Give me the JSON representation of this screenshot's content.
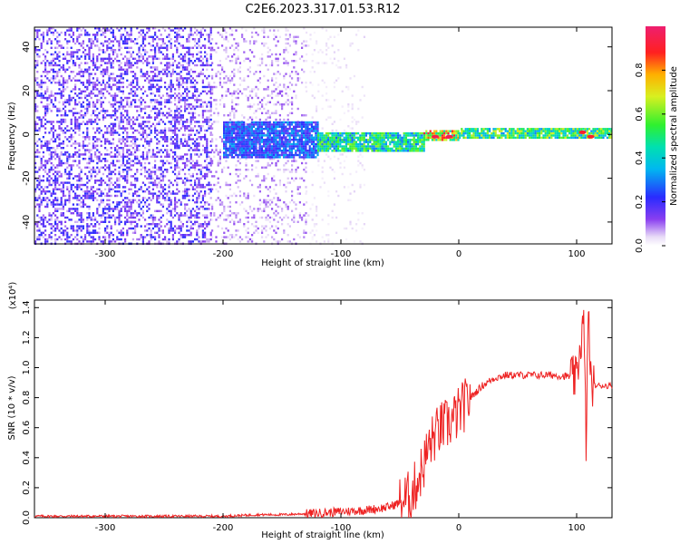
{
  "figure_title": "C2E6.2023.317.01.53.R12",
  "colors": {
    "snr_line": "#ee2222",
    "axis": "#000000",
    "background": "#ffffff"
  },
  "chart_data": [
    {
      "type": "heatmap",
      "title": "C2E6.2023.317.01.53.R12",
      "xlabel": "Height of straight line (km)",
      "ylabel": "Frequency (Hz)",
      "xlim": [
        -360,
        130
      ],
      "ylim": [
        -50,
        49
      ],
      "xticks": [
        -300,
        -200,
        -100,
        0,
        100
      ],
      "xtick_labels": [
        "-300",
        "-200",
        "-100",
        "0",
        "100"
      ],
      "yticks": [
        -40,
        -20,
        0,
        20,
        40
      ],
      "ytick_labels": [
        "-40",
        "-20",
        "0",
        "20",
        "40"
      ],
      "colorbar": {
        "label": "Normalized spectral amplitude",
        "range": [
          0,
          1
        ],
        "ticks": [
          0,
          0.2,
          0.4,
          0.6,
          0.8
        ],
        "tick_labels": [
          "0.0",
          "0.2",
          "0.4",
          "0.6",
          "0.8"
        ],
        "colormap": "rainbow (white-violet-blue-cyan-green-yellow-red-magenta)"
      },
      "regions": [
        {
          "x_range": [
            -360,
            -210
          ],
          "freq_range": [
            -50,
            49
          ],
          "amplitude": 0.1
        },
        {
          "x_range": [
            -210,
            -130
          ],
          "freq_range": [
            -50,
            49
          ],
          "amplitude": 0.05
        },
        {
          "x_range": [
            -130,
            -80
          ],
          "freq_range": [
            -50,
            49
          ],
          "amplitude": 0.02
        },
        {
          "x_range": [
            -200,
            -120
          ],
          "freq_center": -2,
          "freq_halfwidth": 8,
          "amplitude": 0.25
        },
        {
          "x_range": [
            -120,
            -30
          ],
          "freq_center": -3,
          "freq_halfwidth": 4,
          "amplitude": 0.45
        },
        {
          "x_range": [
            -30,
            0
          ],
          "freq_center": 0,
          "freq_halfwidth": 2,
          "amplitude": 0.7
        },
        {
          "x_range": [
            0,
            130
          ],
          "freq_center": 1,
          "freq_halfwidth": 2,
          "amplitude": 0.5
        }
      ],
      "peaks": [
        {
          "x": -20,
          "freq": -1,
          "amplitude": 0.95
        },
        {
          "x": -8,
          "freq": -1,
          "amplitude": 0.95
        },
        {
          "x": 105,
          "freq": 1,
          "amplitude": 0.9
        },
        {
          "x": 112,
          "freq": -1,
          "amplitude": 0.9
        }
      ]
    },
    {
      "type": "line",
      "xlabel": "Height of straight line (km)",
      "ylabel": "SNR (10 * v/v)",
      "scale_label": "(x10⁴)",
      "xlim": [
        -360,
        130
      ],
      "ylim": [
        0,
        1.45
      ],
      "xticks": [
        -300,
        -200,
        -100,
        0,
        100
      ],
      "xtick_labels": [
        "-300",
        "-200",
        "-100",
        "0",
        "100"
      ],
      "yticks": [
        0,
        0.2,
        0.4,
        0.6,
        0.8,
        1.0,
        1.2,
        1.4
      ],
      "ytick_labels": [
        "0.0",
        "0.2",
        "0.4",
        "0.6",
        "0.8",
        "1.0",
        "1.2",
        "1.4"
      ],
      "series": [
        {
          "x": [
            -360,
            -300,
            -250,
            -200,
            -170,
            -150,
            -120,
            -100,
            -80,
            -60,
            -50,
            -40,
            -35,
            -30,
            -25,
            -20,
            -15,
            -10,
            -5,
            0,
            10,
            20,
            30,
            40,
            60,
            80,
            95,
            100,
            103,
            106,
            108,
            110,
            112,
            115,
            120,
            130
          ],
          "values": [
            0.01,
            0.01,
            0.01,
            0.01,
            0.02,
            0.02,
            0.03,
            0.04,
            0.05,
            0.07,
            0.1,
            0.15,
            0.25,
            0.35,
            0.48,
            0.55,
            0.6,
            0.62,
            0.65,
            0.7,
            0.8,
            0.88,
            0.93,
            0.95,
            0.95,
            0.95,
            0.94,
            0.92,
            1.15,
            1.3,
            0.5,
            1.4,
            0.9,
            0.88,
            0.88,
            0.88
          ]
        }
      ]
    }
  ]
}
